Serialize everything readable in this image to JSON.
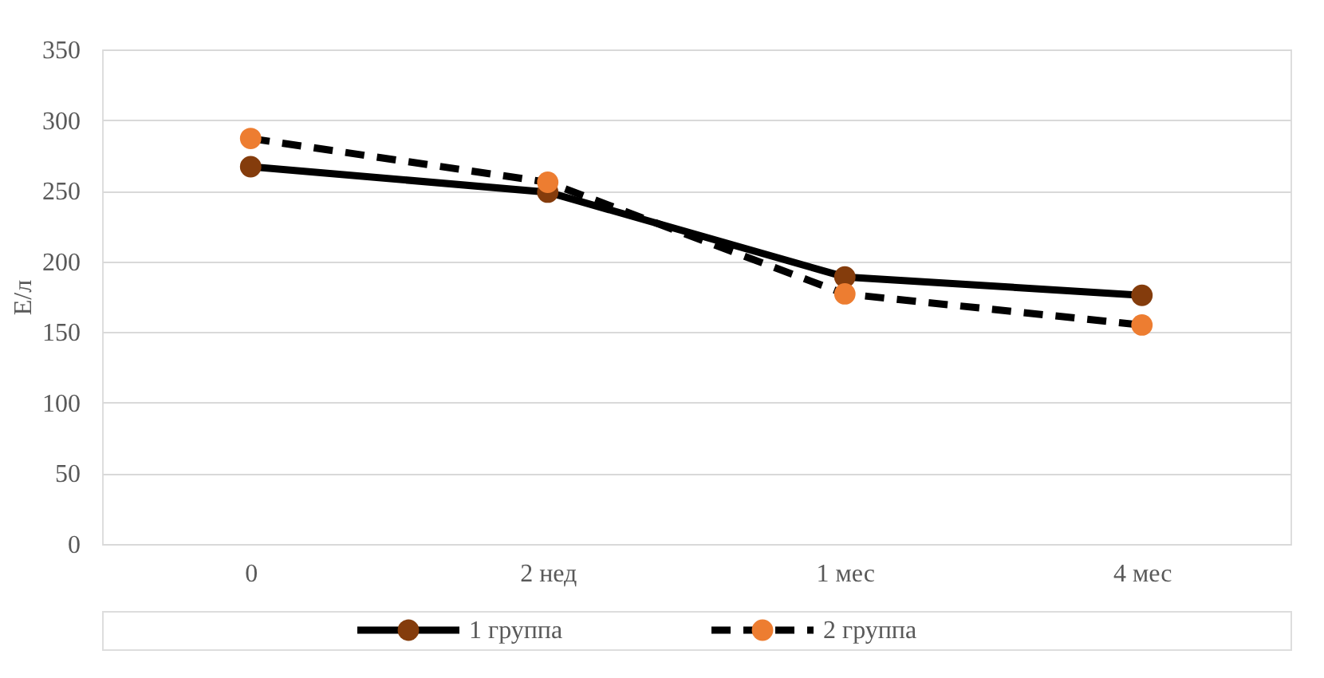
{
  "chart_data": {
    "type": "line",
    "ylabel": "Е/л",
    "categories": [
      "0",
      "2 нед",
      "1 мес",
      "4 мес"
    ],
    "series": [
      {
        "name": "1 группа",
        "color": "#843c0c",
        "line_style": "solid",
        "values": [
          267,
          249,
          189,
          176
        ]
      },
      {
        "name": "2 группа",
        "color": "#ed7d31",
        "line_style": "dashed",
        "values": [
          287,
          256,
          177,
          155
        ]
      }
    ],
    "ylim": [
      0,
      350
    ],
    "yticks": [
      0,
      50,
      100,
      150,
      200,
      250,
      300,
      350
    ],
    "grid": "y",
    "legend": "bottom",
    "marker": "circle"
  }
}
